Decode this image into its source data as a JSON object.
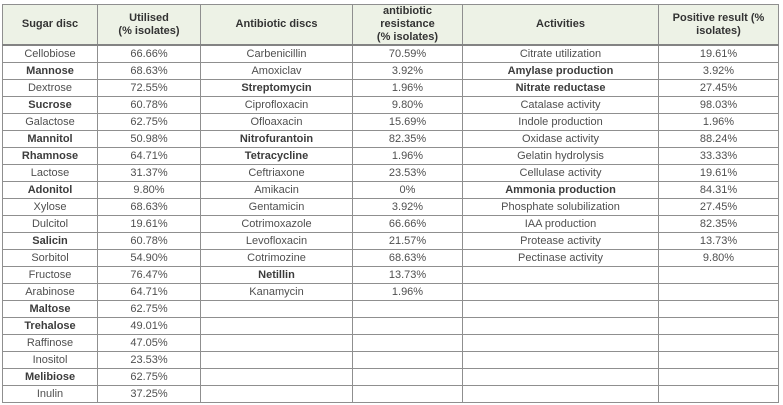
{
  "colors": {
    "header_background": "#edf2e6",
    "border": "#8f8f8f",
    "header_text": "#333333",
    "body_text": "#4f4f4f",
    "page_background": "#ffffff"
  },
  "table": {
    "columns": [
      {
        "label": "Sugar disc"
      },
      {
        "label": "Utilised\n(% isolates)"
      },
      {
        "label": "Antibiotic discs"
      },
      {
        "label": "antibiotic resistance\n(% isolates)"
      },
      {
        "label": "Activities"
      },
      {
        "label": "Positive result (%\nisolates)"
      }
    ],
    "rows": [
      [
        "Cellobiose",
        "66.66%",
        "Carbenicillin",
        "70.59%",
        "Citrate utilization",
        "19.61%"
      ],
      [
        "Mannose",
        "68.63%",
        "Amoxiclav",
        "3.92%",
        "Amylase production",
        "3.92%"
      ],
      [
        "Dextrose",
        "72.55%",
        "Streptomycin",
        "1.96%",
        "Nitrate reductase",
        "27.45%"
      ],
      [
        "Sucrose",
        "60.78%",
        "Ciprofloxacin",
        "9.80%",
        "Catalase activity",
        "98.03%"
      ],
      [
        "Galactose",
        "62.75%",
        "Ofloaxacin",
        "15.69%",
        "Indole production",
        "1.96%"
      ],
      [
        "Mannitol",
        "50.98%",
        "Nitrofurantoin",
        "82.35%",
        "Oxidase activity",
        "88.24%"
      ],
      [
        "Rhamnose",
        "64.71%",
        "Tetracycline",
        "1.96%",
        "Gelatin hydrolysis",
        "33.33%"
      ],
      [
        "Lactose",
        "31.37%",
        "Ceftriaxone",
        "23.53%",
        "Cellulase activity",
        "19.61%"
      ],
      [
        "Adonitol",
        "9.80%",
        "Amikacin",
        "0%",
        "Ammonia production",
        "84.31%"
      ],
      [
        "Xylose",
        "68.63%",
        "Gentamicin",
        "3.92%",
        "Phosphate solubilization",
        "27.45%"
      ],
      [
        "Dulcitol",
        "19.61%",
        "Cotrimoxazole",
        "66.66%",
        "IAA production",
        "82.35%"
      ],
      [
        "Salicin",
        "60.78%",
        "Levofloxacin",
        "21.57%",
        "Protease activity",
        "13.73%"
      ],
      [
        "Sorbitol",
        "54.90%",
        "Cotrimozine",
        "68.63%",
        "Pectinase activity",
        "9.80%"
      ],
      [
        "Fructose",
        "76.47%",
        "Netillin",
        "13.73%",
        "",
        ""
      ],
      [
        "Arabinose",
        "64.71%",
        "Kanamycin",
        "1.96%",
        "",
        ""
      ],
      [
        "Maltose",
        "62.75%",
        "",
        "",
        "",
        ""
      ],
      [
        "Trehalose",
        "49.01%",
        "",
        "",
        "",
        ""
      ],
      [
        "Raffinose",
        "47.05%",
        "",
        "",
        "",
        ""
      ],
      [
        "Inositol",
        "23.53%",
        "",
        "",
        "",
        ""
      ],
      [
        "Melibiose",
        "62.75%",
        "",
        "",
        "",
        ""
      ],
      [
        "Inulin",
        "37.25%",
        "",
        "",
        "",
        ""
      ]
    ],
    "bold_cells": [
      [
        1,
        0
      ],
      [
        3,
        0
      ],
      [
        5,
        0
      ],
      [
        6,
        0
      ],
      [
        8,
        0
      ],
      [
        11,
        0
      ],
      [
        15,
        0
      ],
      [
        16,
        0
      ],
      [
        19,
        0
      ],
      [
        2,
        2
      ],
      [
        5,
        2
      ],
      [
        6,
        2
      ],
      [
        13,
        2
      ],
      [
        1,
        4
      ],
      [
        2,
        4
      ],
      [
        8,
        4
      ]
    ]
  }
}
